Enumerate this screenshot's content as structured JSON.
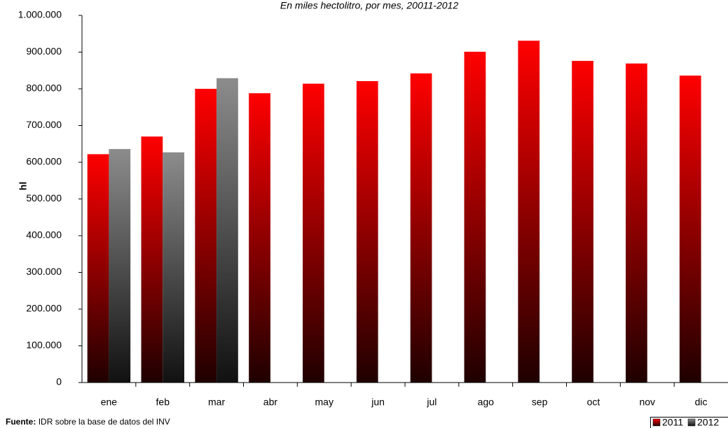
{
  "chart_data": {
    "type": "bar",
    "subtitle": "En miles hectolitro, por mes, 20011-2012",
    "y_label": "hl",
    "source_label": "Fuente:",
    "source_text": "IDR sobre la base de datos del INV",
    "categories": [
      "ene",
      "feb",
      "mar",
      "abr",
      "may",
      "jun",
      "jul",
      "ago",
      "sep",
      "oct",
      "nov",
      "dic"
    ],
    "series": [
      {
        "name": "2011",
        "color": "#ff0000",
        "values": [
          622000,
          670000,
          800000,
          788000,
          814000,
          821000,
          842000,
          901000,
          931000,
          876000,
          869000,
          836000
        ]
      },
      {
        "name": "2012",
        "color": "#8c8c8c",
        "values": [
          636000,
          627000,
          829000,
          null,
          null,
          null,
          null,
          null,
          null,
          null,
          null,
          null
        ]
      }
    ],
    "ylim": [
      0,
      1000000
    ],
    "yticks": [
      0,
      {
        "value": 100000,
        "label": "100.000"
      },
      {
        "value": 200000,
        "label": "200.000"
      },
      {
        "value": 300000,
        "label": "300.000"
      },
      {
        "value": 400000,
        "label": "400.000"
      },
      {
        "value": 500000,
        "label": "500.000"
      },
      {
        "value": 600000,
        "label": "600.000"
      },
      {
        "value": 700000,
        "label": "700.000"
      },
      {
        "value": 800000,
        "label": "800.000"
      },
      {
        "value": 900000,
        "label": "900.000"
      },
      {
        "value": 1000000,
        "label": "1.000.000"
      }
    ],
    "grid": false,
    "legend": "bottom-right"
  }
}
